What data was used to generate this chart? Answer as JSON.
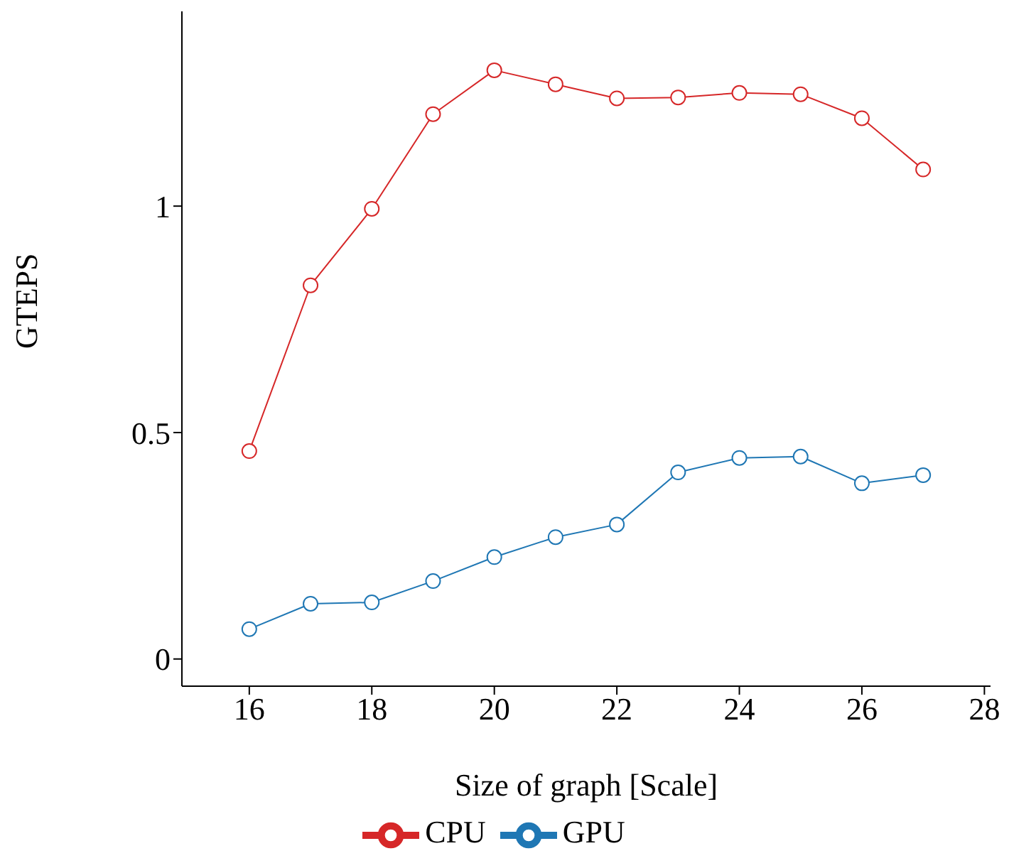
{
  "chart_data": {
    "type": "line",
    "xlabel": "Size of graph [Scale]",
    "ylabel": "GTEPS",
    "x": [
      16,
      17,
      18,
      19,
      20,
      21,
      22,
      23,
      24,
      25,
      26,
      27
    ],
    "series": [
      {
        "name": "GPU",
        "color": "#1f77b4",
        "values": [
          0.066,
          0.122,
          0.125,
          0.172,
          0.225,
          0.269,
          0.297,
          0.412,
          0.444,
          0.447,
          0.388,
          0.406
        ]
      },
      {
        "name": "CPU",
        "color": "#d62728",
        "values": [
          0.459,
          0.825,
          0.994,
          1.203,
          1.3,
          1.269,
          1.238,
          1.24,
          1.25,
          1.247,
          1.194,
          1.081
        ]
      }
    ],
    "xlim": [
      14.9,
      28.1
    ],
    "xticks": [
      16,
      18,
      20,
      22,
      24,
      26,
      28
    ],
    "ylim": [
      -0.06,
      1.43
    ],
    "yticks": [
      0,
      0.5,
      1
    ],
    "grid": false,
    "legend": "bottom",
    "marker": "circle",
    "line_style": "solid"
  }
}
